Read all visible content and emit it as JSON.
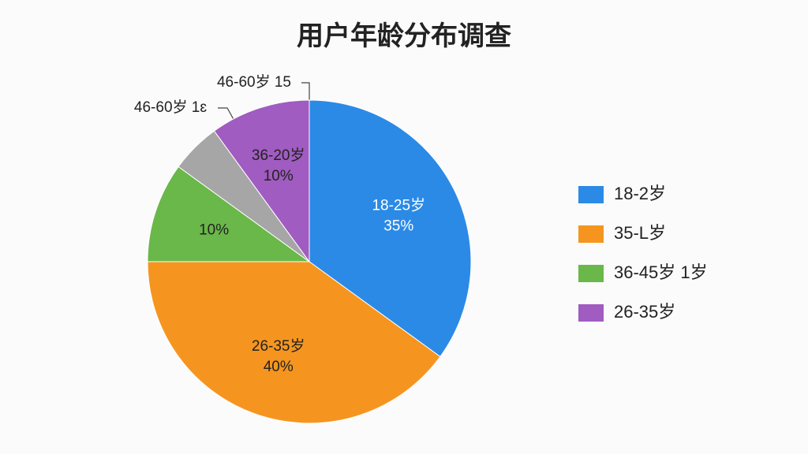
{
  "chart_data": {
    "type": "pie",
    "title": "用户年龄分布调查",
    "categories": [
      "18-25岁",
      "26-35岁",
      null,
      null,
      "36-20岁"
    ],
    "values": [
      35,
      40,
      10,
      5,
      10
    ],
    "value_labels": [
      "35%",
      "40%",
      "10%",
      null,
      "10%"
    ],
    "colors": [
      "#2b8ae6",
      "#f5951f",
      "#6ab74a",
      "#a6a6a6",
      "#a05cc0"
    ],
    "legend": [
      {
        "label": "18-2岁",
        "color": "#2b8ae6"
      },
      {
        "label": "35-L岁",
        "color": "#f5951f"
      },
      {
        "label": "36-45岁 1岁",
        "color": "#6ab74a"
      },
      {
        "label": "26-35岁",
        "color": "#a05cc0"
      }
    ],
    "annotations": [
      "46-60岁 15",
      "46-60岁 1ɛ"
    ]
  }
}
